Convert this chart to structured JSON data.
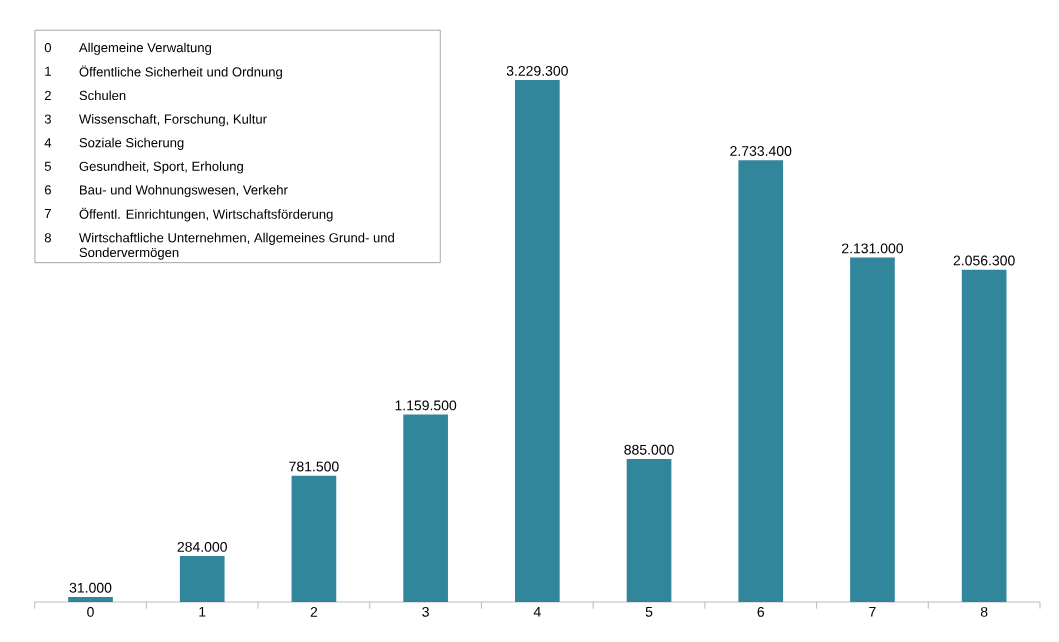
{
  "chart_data": {
    "type": "bar",
    "categories": [
      "0",
      "1",
      "2",
      "3",
      "4",
      "5",
      "6",
      "7",
      "8"
    ],
    "values": [
      31000,
      284000,
      781500,
      1159500,
      3229300,
      885000,
      2733400,
      2131000,
      2056300
    ],
    "value_labels": [
      "31.000",
      "284.000",
      "781.500",
      "1.159.500",
      "3.229.300",
      "885.000",
      "2.733.400",
      "2.131.000",
      "2.056.300"
    ],
    "color": "#31869b",
    "annotations": [
      "Allgemeine Verwaltung",
      "Öffentliche Sicherheit und Ordnung",
      "Schulen",
      "Wissenschaft, Forschung, Kultur",
      "Soziale Sicherung",
      "Gesundheit, Sport, Erholung",
      "Bau- und Wohnungswesen, Verkehr",
      "Öffentl. Einrichtungen, Wirtschaftsförderung",
      "Wirtschaftliche Unternehmen, Allgemeines Grund- und Sondervermögen"
    ]
  }
}
